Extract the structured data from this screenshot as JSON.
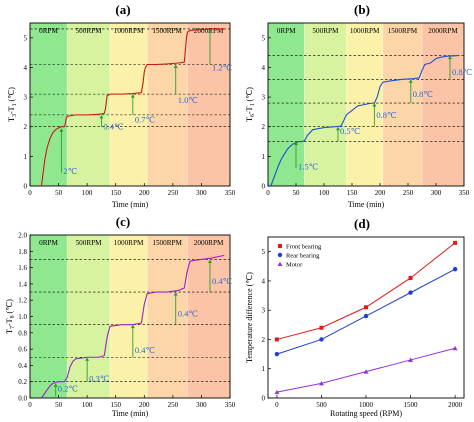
{
  "chart_data": [
    {
      "type": "line",
      "panel_label": "(a)",
      "ylabel": "T3-T1 (℃)",
      "ylabel_main": "T",
      "ylabel_sub1": "3",
      "ylabel_mid": "-T",
      "ylabel_sub2": "1",
      "ylabel_unit": " (℃)",
      "xlabel": "Time (min)",
      "xlim": [
        0,
        350
      ],
      "ylim": [
        0,
        5.5
      ],
      "xticks": [
        "0",
        "50",
        "100",
        "150",
        "200",
        "250",
        "300",
        "350"
      ],
      "yticks": [
        "0",
        "1",
        "2",
        "3",
        "4",
        "5"
      ],
      "speed_bands": [
        {
          "label": "0RPM",
          "from": 0,
          "to": 65,
          "color": "#8fe88f"
        },
        {
          "label": "500RPM",
          "from": 65,
          "to": 140,
          "color": "#d8f3a0"
        },
        {
          "label": "1000RPM",
          "from": 140,
          "to": 205,
          "color": "#fbf1a8"
        },
        {
          "label": "1500RPM",
          "from": 205,
          "to": 275,
          "color": "#fcd6a8"
        },
        {
          "label": "2000RPM",
          "from": 275,
          "to": 350,
          "color": "#fbc4a6"
        }
      ],
      "plateaus": [
        2.0,
        2.4,
        3.1,
        4.1,
        5.3
      ],
      "line_color": "#d21414",
      "series": [
        {
          "x": [
            20,
            23,
            26,
            30,
            35,
            40,
            45,
            50,
            55,
            60,
            62,
            63,
            65,
            80,
            100,
            120,
            130,
            132,
            134,
            135,
            140,
            160,
            180,
            195,
            198,
            200,
            202,
            205,
            220,
            240,
            260,
            270,
            272,
            274,
            276,
            280,
            300,
            320,
            340
          ],
          "y": [
            0.0,
            0.45,
            0.9,
            1.3,
            1.6,
            1.8,
            1.9,
            1.96,
            2.0,
            2.0,
            2.1,
            2.25,
            2.35,
            2.4,
            2.4,
            2.42,
            2.45,
            2.6,
            2.9,
            3.05,
            3.1,
            3.1,
            3.12,
            3.15,
            3.5,
            3.85,
            4.0,
            4.1,
            4.1,
            4.12,
            4.15,
            4.18,
            4.6,
            5.05,
            5.2,
            5.25,
            5.28,
            5.3,
            5.3
          ]
        }
      ],
      "annotations": [
        {
          "text": "2℃",
          "x": 55,
          "y_from": 0.45,
          "y_to": 1.95,
          "label_y": 0.4
        },
        {
          "text": "0.4℃",
          "x": 125,
          "y_from": 2.0,
          "y_to": 2.4,
          "label_y": 1.9
        },
        {
          "text": "0.7℃",
          "x": 180,
          "y_from": 2.4,
          "y_to": 3.1,
          "label_y": 2.15
        },
        {
          "text": "1.0℃",
          "x": 255,
          "y_from": 3.1,
          "y_to": 4.1,
          "label_y": 2.8
        },
        {
          "text": "1.2℃",
          "x": 315,
          "y_from": 4.1,
          "y_to": 5.3,
          "label_y": 3.9
        }
      ]
    },
    {
      "type": "line",
      "panel_label": "(b)",
      "ylabel": "T6-T1 (℃)",
      "ylabel_main": "T",
      "ylabel_sub1": "6",
      "ylabel_mid": "-T",
      "ylabel_sub2": "1",
      "ylabel_unit": " (℃)",
      "xlabel": "Time (min)",
      "xlim": [
        0,
        350
      ],
      "ylim": [
        0,
        5.5
      ],
      "xticks": [
        "0",
        "50",
        "100",
        "150",
        "200",
        "250",
        "300",
        "350"
      ],
      "yticks": [
        "0",
        "1",
        "2",
        "3",
        "4",
        "5"
      ],
      "speed_bands": [
        {
          "label": "0RPM",
          "from": 0,
          "to": 65,
          "color": "#8fe88f"
        },
        {
          "label": "500RPM",
          "from": 65,
          "to": 140,
          "color": "#d8f3a0"
        },
        {
          "label": "1000RPM",
          "from": 140,
          "to": 205,
          "color": "#fbf1a8"
        },
        {
          "label": "1500RPM",
          "from": 205,
          "to": 275,
          "color": "#fcd6a8"
        },
        {
          "label": "2000RPM",
          "from": 275,
          "to": 350,
          "color": "#fbc4a6"
        }
      ],
      "plateaus": [
        1.5,
        2.0,
        2.8,
        3.6,
        4.4
      ],
      "line_color": "#1a4fd6",
      "series": [
        {
          "x": [
            5,
            10,
            15,
            20,
            25,
            30,
            35,
            40,
            45,
            50,
            55,
            60,
            65,
            70,
            80,
            100,
            120,
            130,
            135,
            140,
            150,
            160,
            180,
            190,
            195,
            200,
            205,
            220,
            240,
            260,
            270,
            275,
            280,
            290,
            300,
            310,
            320,
            340
          ],
          "y": [
            0.0,
            0.25,
            0.5,
            0.75,
            0.95,
            1.1,
            1.25,
            1.35,
            1.42,
            1.47,
            1.5,
            1.5,
            1.52,
            1.7,
            1.9,
            1.97,
            2.0,
            2.02,
            2.2,
            2.4,
            2.55,
            2.7,
            2.78,
            2.8,
            3.0,
            3.35,
            3.5,
            3.55,
            3.6,
            3.62,
            3.65,
            3.9,
            4.1,
            4.15,
            4.3,
            4.35,
            4.38,
            4.4
          ]
        }
      ],
      "annotations": [
        {
          "text": "1.5℃",
          "x": 50,
          "y_from": 0.6,
          "y_to": 1.5,
          "label_y": 0.55
        },
        {
          "text": "0.5℃",
          "x": 125,
          "y_from": 1.5,
          "y_to": 2.0,
          "label_y": 1.75
        },
        {
          "text": "0.8℃",
          "x": 190,
          "y_from": 2.0,
          "y_to": 2.8,
          "label_y": 2.3
        },
        {
          "text": "0.8℃",
          "x": 255,
          "y_from": 2.8,
          "y_to": 3.6,
          "label_y": 3.0
        },
        {
          "text": "0.8℃",
          "x": 325,
          "y_from": 3.6,
          "y_to": 4.4,
          "label_y": 3.75
        }
      ]
    },
    {
      "type": "line",
      "panel_label": "(c)",
      "ylabel": "T7-T8 (℃)",
      "ylabel_main": "T",
      "ylabel_sub1": "7",
      "ylabel_mid": "-T",
      "ylabel_sub2": "8",
      "ylabel_unit": " (℃)",
      "xlabel": "Time (min)",
      "xlim": [
        0,
        350
      ],
      "ylim": [
        0,
        2.0
      ],
      "xticks": [
        "0",
        "50",
        "100",
        "150",
        "200",
        "250",
        "300",
        "350"
      ],
      "yticks": [
        "0.0",
        "0.2",
        "0.4",
        "0.6",
        "0.8",
        "1.0",
        "1.2",
        "1.4",
        "1.6",
        "1.8",
        "2.0"
      ],
      "speed_bands": [
        {
          "label": "0RPM",
          "from": 0,
          "to": 65,
          "color": "#8fe88f"
        },
        {
          "label": "500RPM",
          "from": 65,
          "to": 140,
          "color": "#d8f3a0"
        },
        {
          "label": "1000RPM",
          "from": 140,
          "to": 205,
          "color": "#fbf1a8"
        },
        {
          "label": "1500RPM",
          "from": 205,
          "to": 275,
          "color": "#fcd6a8"
        },
        {
          "label": "2000RPM",
          "from": 275,
          "to": 350,
          "color": "#fbc4a6"
        }
      ],
      "plateaus": [
        0.2,
        0.5,
        0.9,
        1.3,
        1.7
      ],
      "line_color": "#a020c8",
      "series": [
        {
          "x": [
            20,
            25,
            30,
            35,
            40,
            50,
            60,
            65,
            70,
            75,
            80,
            100,
            120,
            130,
            135,
            140,
            160,
            180,
            195,
            200,
            205,
            220,
            240,
            260,
            270,
            275,
            280,
            300,
            320,
            340
          ],
          "y": [
            0.0,
            0.05,
            0.1,
            0.15,
            0.18,
            0.2,
            0.2,
            0.25,
            0.38,
            0.45,
            0.48,
            0.5,
            0.5,
            0.52,
            0.75,
            0.88,
            0.9,
            0.9,
            0.92,
            1.15,
            1.28,
            1.3,
            1.3,
            1.32,
            1.35,
            1.55,
            1.68,
            1.7,
            1.72,
            1.75
          ]
        }
      ],
      "annotations": [
        {
          "text": "0.2℃",
          "x": 45,
          "y_from": 0.02,
          "y_to": 0.18,
          "label_y": 0.08
        },
        {
          "text": "0.3℃",
          "x": 100,
          "y_from": 0.2,
          "y_to": 0.5,
          "label_y": 0.2
        },
        {
          "text": "0.4℃",
          "x": 180,
          "y_from": 0.5,
          "y_to": 0.9,
          "label_y": 0.55
        },
        {
          "text": "0.4℃",
          "x": 255,
          "y_from": 0.9,
          "y_to": 1.3,
          "label_y": 1.0
        },
        {
          "text": "0.4℃",
          "x": 315,
          "y_from": 1.3,
          "y_to": 1.7,
          "label_y": 1.4
        }
      ]
    },
    {
      "type": "scatter",
      "panel_label": "(d)",
      "xlabel": "Rotating speed (RPM)",
      "ylabel": "Temperature difference (℃)",
      "xlim": [
        -100,
        2100
      ],
      "ylim": [
        0,
        5.5
      ],
      "xticks": [
        "0",
        "500",
        "1000",
        "1500",
        "2000"
      ],
      "xtick_values": [
        0,
        500,
        1000,
        1500,
        2000
      ],
      "yticks": [
        "0",
        "1",
        "2",
        "3",
        "4",
        "5"
      ],
      "legend_position": "top-left",
      "series": [
        {
          "name": "Front bearing",
          "marker": "square",
          "color": "#e31a1c",
          "x": [
            0,
            500,
            1000,
            1500,
            2000
          ],
          "y": [
            2.0,
            2.4,
            3.1,
            4.1,
            5.3
          ]
        },
        {
          "name": "Rear bearing",
          "marker": "circle",
          "color": "#1f3fd0",
          "x": [
            0,
            500,
            1000,
            1500,
            2000
          ],
          "y": [
            1.5,
            2.0,
            2.8,
            3.6,
            4.4
          ]
        },
        {
          "name": "Motor",
          "marker": "triangle",
          "color": "#9b30d9",
          "x": [
            0,
            500,
            1000,
            1500,
            2000
          ],
          "y": [
            0.2,
            0.5,
            0.9,
            1.3,
            1.7
          ]
        }
      ]
    }
  ]
}
